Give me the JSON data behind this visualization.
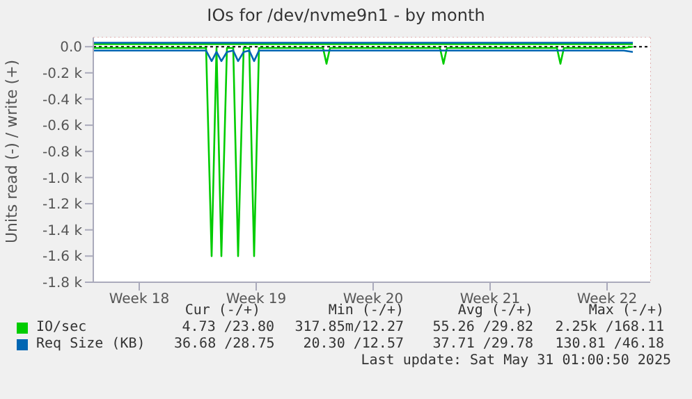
{
  "chart_data": {
    "type": "line",
    "title": "IOs for /dev/nvme9n1 - by month",
    "ylabel": "Units read (-) / write (+)",
    "x": [
      "2025-04-28T18:00",
      "2025-04-29T12:00",
      "2025-04-30T12:00",
      "2025-05-01T12:00",
      "2025-05-02T12:00",
      "2025-05-03T12:00",
      "2025-05-04T12:00",
      "2025-05-05T12:00",
      "2025-05-05T20:00",
      "2025-05-06T03:00",
      "2025-05-06T10:00",
      "2025-05-06T18:00",
      "2025-05-07T03:00",
      "2025-05-07T10:00",
      "2025-05-07T18:00",
      "2025-05-08T02:00",
      "2025-05-08T09:00",
      "2025-05-08T16:00",
      "2025-05-09T12:00",
      "2025-05-10T12:00",
      "2025-05-11T12:00",
      "2025-05-12T12:00",
      "2025-05-12T17:00",
      "2025-05-12T22:00",
      "2025-05-13T12:00",
      "2025-05-14T12:00",
      "2025-05-15T12:00",
      "2025-05-16T12:00",
      "2025-05-17T12:00",
      "2025-05-18T12:00",
      "2025-05-19T12:00",
      "2025-05-19T17:00",
      "2025-05-19T22:00",
      "2025-05-20T12:00",
      "2025-05-21T12:00",
      "2025-05-22T12:00",
      "2025-05-23T12:00",
      "2025-05-24T12:00",
      "2025-05-25T12:00",
      "2025-05-26T12:00",
      "2025-05-26T17:00",
      "2025-05-26T22:00",
      "2025-05-27T12:00",
      "2025-05-28T12:00",
      "2025-05-29T12:00",
      "2025-05-30T12:00",
      "2025-05-31T01:00"
    ],
    "series": [
      {
        "name": "IO/sec",
        "color": "#00cc00",
        "values": [
          -10,
          -10,
          -10,
          -10,
          -10,
          -10,
          -10,
          -10,
          -1600,
          -10,
          -1600,
          -10,
          -10,
          -1600,
          -10,
          -10,
          -1600,
          -10,
          -10,
          -10,
          -10,
          -10,
          -130,
          -10,
          -10,
          -10,
          -10,
          -10,
          -10,
          -10,
          -10,
          -130,
          -10,
          -10,
          -10,
          -10,
          -10,
          -10,
          -10,
          -10,
          -130,
          -10,
          -10,
          -10,
          -10,
          -10,
          0
        ]
      },
      {
        "color": "#00cc00",
        "values": [
          20,
          20,
          20,
          20,
          20,
          20,
          20,
          20,
          20,
          20,
          20,
          20,
          20,
          20,
          20,
          20,
          20,
          20,
          20,
          20,
          20,
          20,
          20,
          20,
          20,
          20,
          20,
          20,
          20,
          20,
          20,
          20,
          20,
          20,
          20,
          20,
          20,
          20,
          20,
          20,
          20,
          20,
          20,
          20,
          20,
          20,
          20
        ]
      },
      {
        "name": "Req Size (KB)",
        "color": "#0066b3",
        "values": [
          -30,
          -30,
          -30,
          -30,
          -30,
          -30,
          -30,
          -30,
          -110,
          -40,
          -110,
          -40,
          -30,
          -110,
          -40,
          -30,
          -110,
          -30,
          -30,
          -30,
          -30,
          -30,
          -30,
          -30,
          -30,
          -30,
          -30,
          -30,
          -30,
          -30,
          -30,
          -30,
          -30,
          -30,
          -30,
          -30,
          -30,
          -30,
          -30,
          -30,
          -30,
          -30,
          -30,
          -30,
          -30,
          -30,
          -40
        ]
      },
      {
        "color": "#0066b3",
        "values": [
          30,
          30,
          30,
          30,
          30,
          30,
          30,
          30,
          30,
          30,
          30,
          30,
          30,
          30,
          30,
          30,
          30,
          30,
          30,
          30,
          30,
          30,
          30,
          30,
          30,
          30,
          30,
          30,
          30,
          30,
          30,
          30,
          30,
          30,
          30,
          30,
          30,
          30,
          30,
          30,
          30,
          30,
          30,
          30,
          30,
          30,
          30
        ]
      }
    ],
    "xlim": [
      "2025-04-28T18:00",
      "2025-06-01T02:00"
    ],
    "xticks": [
      {
        "value": "2025-05-01T12:00",
        "label": "Week 18"
      },
      {
        "value": "2025-05-08T12:00",
        "label": "Week 19"
      },
      {
        "value": "2025-05-15T12:00",
        "label": "Week 20"
      },
      {
        "value": "2025-05-22T12:00",
        "label": "Week 21"
      },
      {
        "value": "2025-05-29T12:00",
        "label": "Week 22"
      }
    ],
    "ylim": [
      -1800,
      70
    ],
    "yticks": [
      {
        "value": -1800,
        "label": "-1.8 k"
      },
      {
        "value": -1600,
        "label": "-1.6 k"
      },
      {
        "value": -1400,
        "label": "-1.4 k"
      },
      {
        "value": -1200,
        "label": "-1.2 k"
      },
      {
        "value": -1000,
        "label": "-1.0 k"
      },
      {
        "value": -800,
        "label": "-0.8 k"
      },
      {
        "value": -600,
        "label": "-0.6 k"
      },
      {
        "value": -400,
        "label": "-0.4 k"
      },
      {
        "value": -200,
        "label": "-0.2 k"
      },
      {
        "value": 0,
        "label": "0.0"
      }
    ],
    "grid": true,
    "legend": "bottom",
    "annotations": [
      "Cur (-/+)",
      "Min (-/+)",
      "Avg (-/+)",
      "Max (-/+)",
      "4.73 /23.80",
      "317.85m/12.27",
      "55.26 /29.82",
      "2.25k /168.11",
      "36.68 /28.75",
      "20.30 /12.57",
      "37.71 /29.78",
      "130.81 /46.18",
      "Last update: Sat May 31 01:00:50 2025"
    ]
  }
}
